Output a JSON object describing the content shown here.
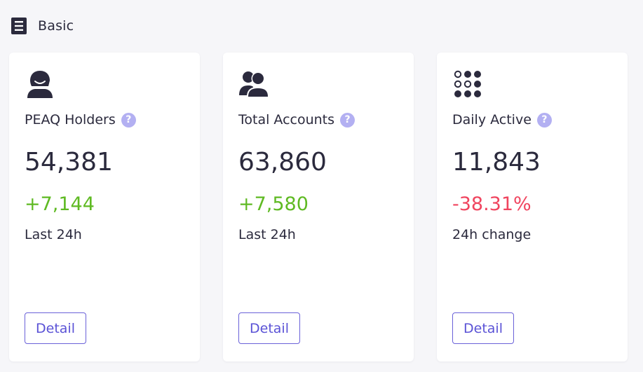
{
  "section": {
    "title": "Basic",
    "icon": "list-icon"
  },
  "colors": {
    "positive": "#5fba23",
    "negative": "#f0455f",
    "accent": "#6a61d9",
    "help": "#b3b0f2"
  },
  "cards": [
    {
      "icon": "user-icon",
      "label": "PEAQ Holders",
      "value": "54,381",
      "delta": "+7,144",
      "delta_trend": "positive",
      "sub": "Last 24h",
      "button": "Detail",
      "help": "?"
    },
    {
      "icon": "users-icon",
      "label": "Total Accounts",
      "value": "63,860",
      "delta": "+7,580",
      "delta_trend": "positive",
      "sub": "Last 24h",
      "button": "Detail",
      "help": "?"
    },
    {
      "icon": "dots-grid-icon",
      "label": "Daily Active",
      "value": "11,843",
      "delta": "-38.31%",
      "delta_trend": "negative",
      "sub": "24h change",
      "button": "Detail",
      "help": "?"
    }
  ]
}
